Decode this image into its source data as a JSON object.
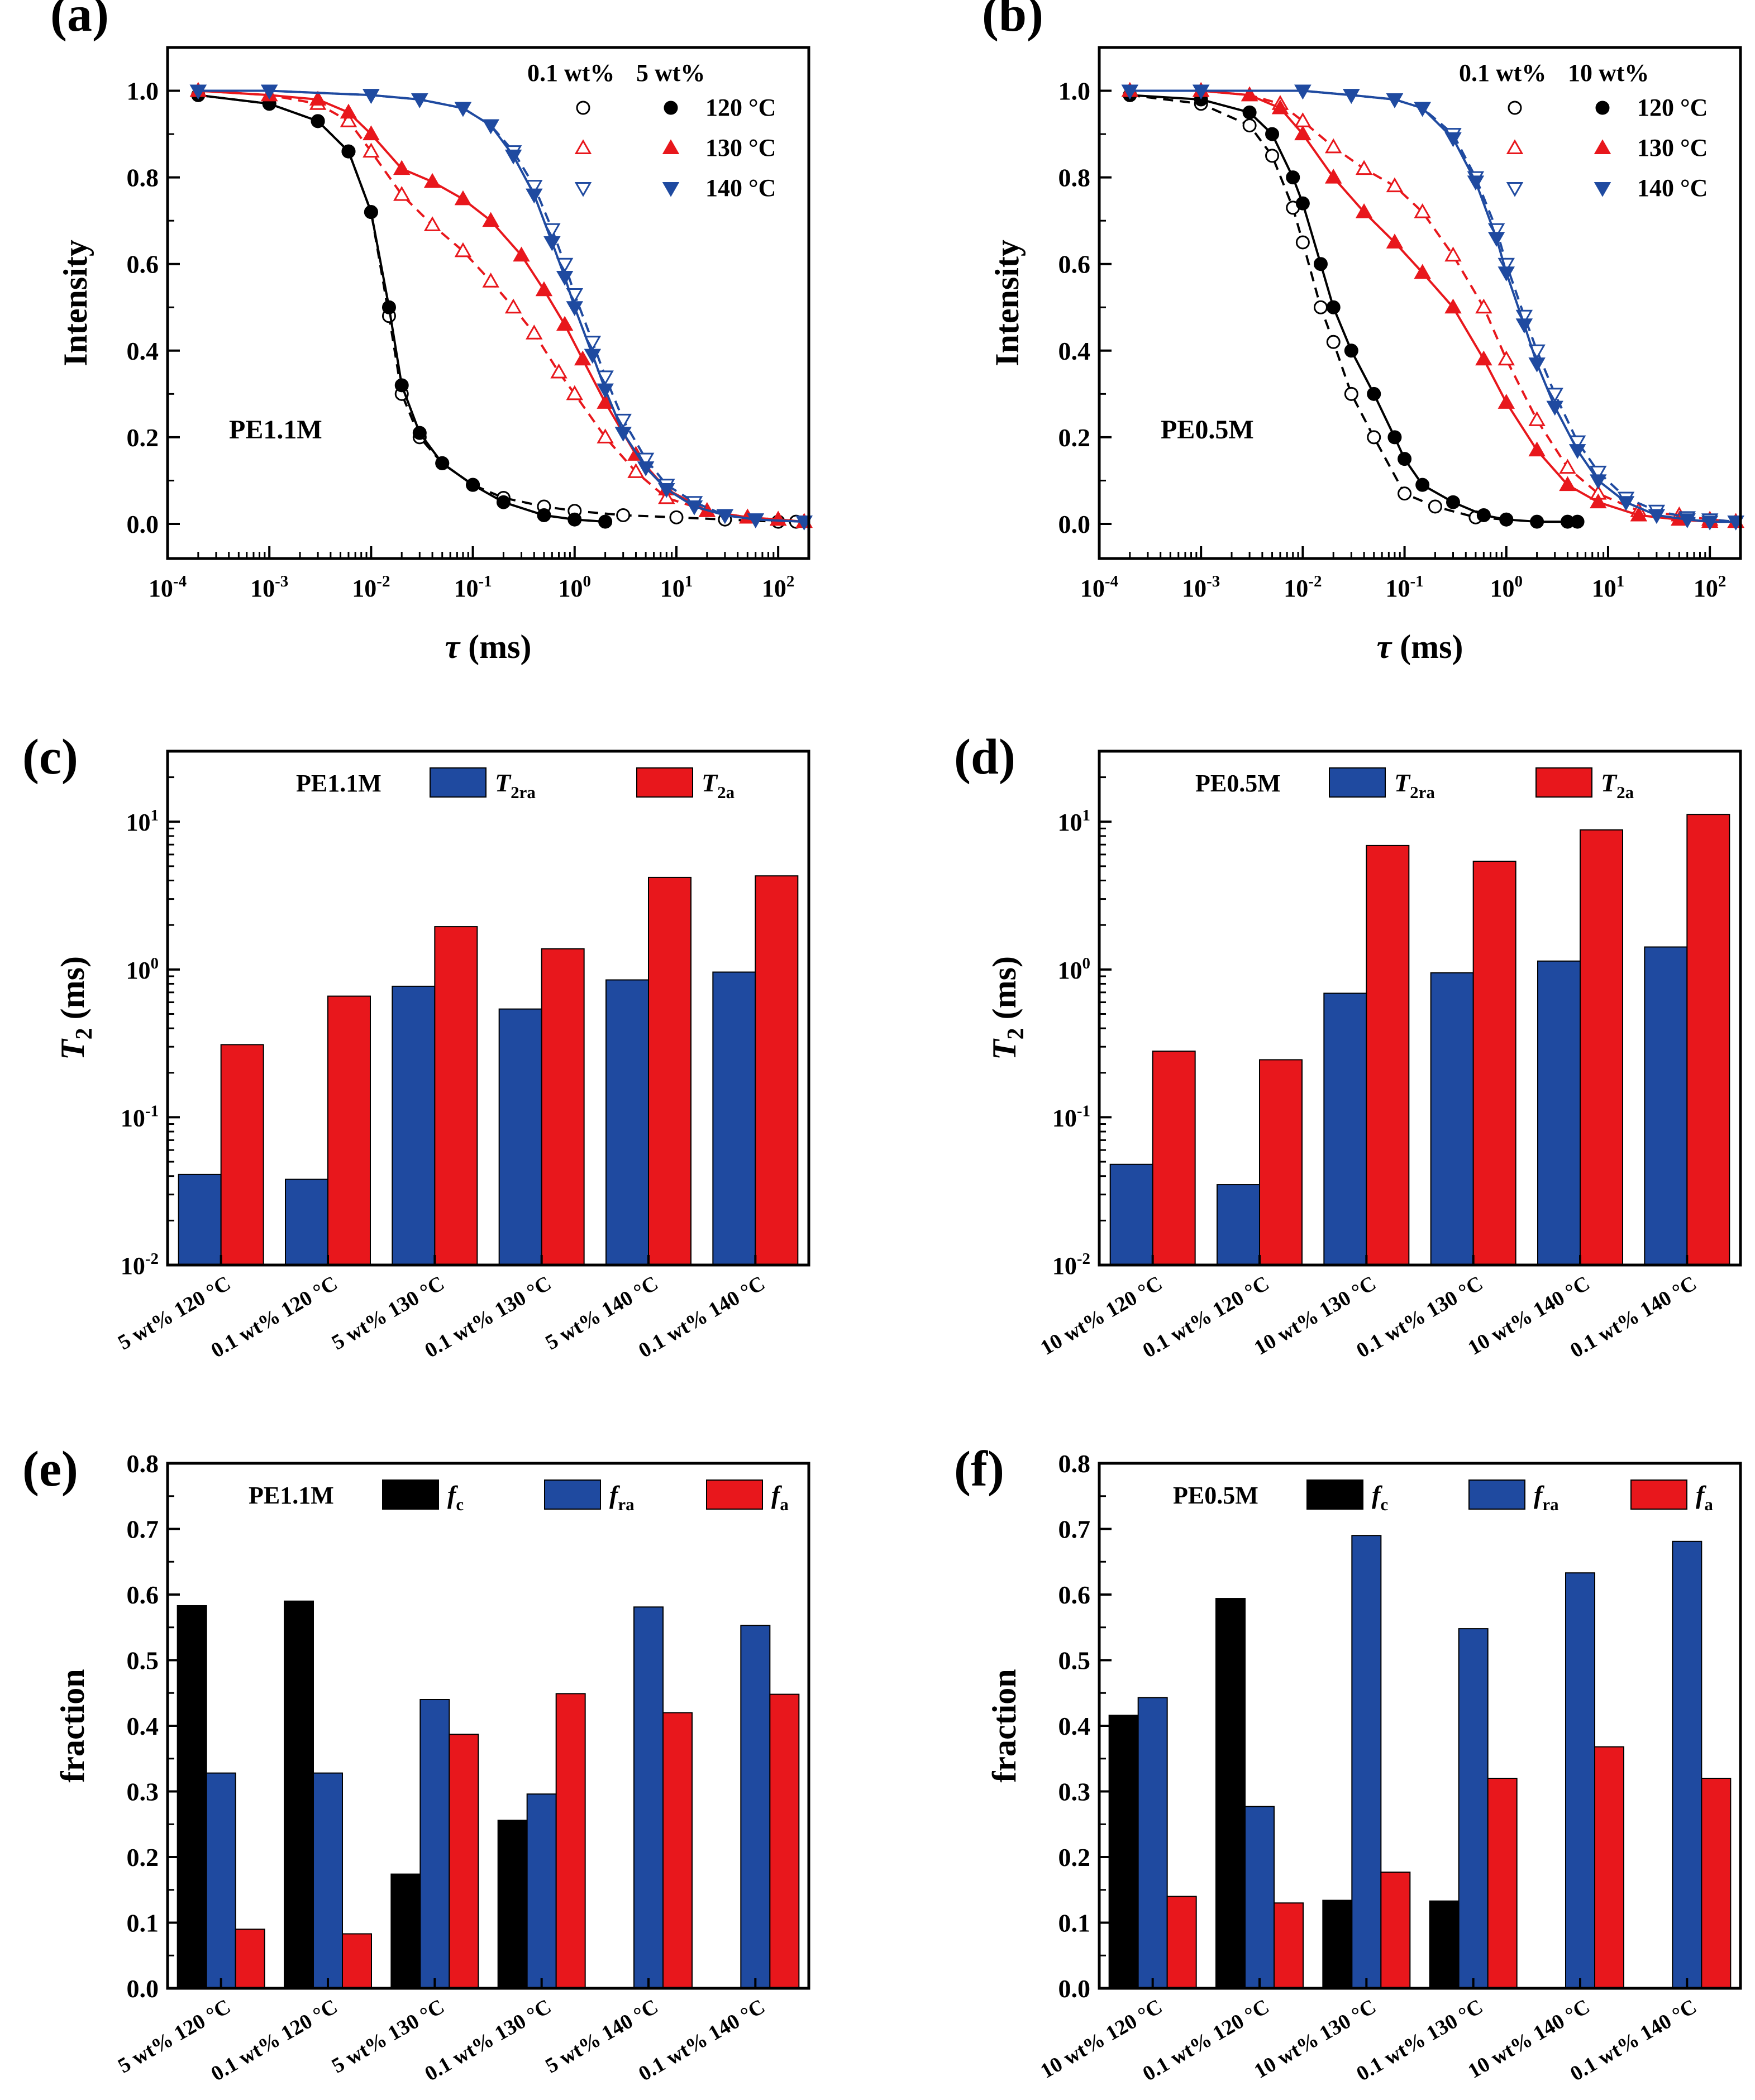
{
  "colors": {
    "black": "#000000",
    "red": "#e8171c",
    "blue": "#1f4aa0"
  },
  "chart_data": [
    {
      "type": "scatter",
      "panel": "(a)",
      "sample": "PE1.1M",
      "xlabel_sym": "τ",
      "xlabel_unit": " (ms)",
      "ylabel": "Intensity",
      "xscale": "log",
      "xlim": [
        0.0001,
        200
      ],
      "ylim": [
        -0.08,
        1.1
      ],
      "xticks": [
        {
          "v": 0.0001,
          "b": "10",
          "e": "-4"
        },
        {
          "v": 0.001,
          "b": "10",
          "e": "-3"
        },
        {
          "v": 0.01,
          "b": "10",
          "e": "-2"
        },
        {
          "v": 0.1,
          "b": "10",
          "e": "-1"
        },
        {
          "v": 1,
          "b": "10",
          "e": "0"
        },
        {
          "v": 10,
          "b": "10",
          "e": "1"
        },
        {
          "v": 100,
          "b": "10",
          "e": "2"
        }
      ],
      "yticks": [
        {
          "v": 0.0,
          "t": "0.0"
        },
        {
          "v": 0.2,
          "t": "0.2"
        },
        {
          "v": 0.4,
          "t": "0.4"
        },
        {
          "v": 0.6,
          "t": "0.6"
        },
        {
          "v": 0.8,
          "t": "0.8"
        },
        {
          "v": 1.0,
          "t": "1.0"
        }
      ],
      "legend": {
        "header_open": "0.1 wt%",
        "header_filled": "5 wt%",
        "rows": [
          "120 °C",
          "130 °C",
          "140 °C"
        ]
      },
      "series": [
        {
          "name": "0.1 wt% 120 °C",
          "color": "#000000",
          "marker": "circle-open",
          "x": [
            0.0002,
            0.001,
            0.003,
            0.006,
            0.01,
            0.015,
            0.02,
            0.03,
            0.05,
            0.1,
            0.2,
            0.5,
            1,
            3,
            10,
            30,
            100,
            150
          ],
          "y": [
            0.99,
            0.97,
            0.93,
            0.86,
            0.72,
            0.48,
            0.3,
            0.2,
            0.14,
            0.09,
            0.06,
            0.04,
            0.03,
            0.02,
            0.015,
            0.01,
            0.005,
            0.005
          ]
        },
        {
          "name": "5 wt% 120 °C",
          "color": "#000000",
          "marker": "circle-filled",
          "x": [
            0.0002,
            0.001,
            0.003,
            0.006,
            0.01,
            0.015,
            0.02,
            0.03,
            0.05,
            0.1,
            0.2,
            0.5,
            1,
            2
          ],
          "y": [
            0.99,
            0.97,
            0.93,
            0.86,
            0.72,
            0.5,
            0.32,
            0.21,
            0.14,
            0.09,
            0.05,
            0.02,
            0.01,
            0.005
          ]
        },
        {
          "name": "0.1 wt% 130 °C",
          "color": "#e8171c",
          "marker": "triangle-up-open",
          "x": [
            0.0002,
            0.001,
            0.003,
            0.006,
            0.01,
            0.02,
            0.04,
            0.08,
            0.15,
            0.25,
            0.4,
            0.7,
            1,
            2,
            4,
            8,
            20,
            50,
            100,
            180
          ],
          "y": [
            1.0,
            0.99,
            0.97,
            0.93,
            0.86,
            0.76,
            0.69,
            0.63,
            0.56,
            0.5,
            0.44,
            0.35,
            0.3,
            0.2,
            0.12,
            0.06,
            0.03,
            0.015,
            0.01,
            0.005
          ]
        },
        {
          "name": "5 wt% 130 °C",
          "color": "#e8171c",
          "marker": "triangle-up-filled",
          "x": [
            0.0002,
            0.001,
            0.003,
            0.006,
            0.01,
            0.02,
            0.04,
            0.08,
            0.15,
            0.3,
            0.5,
            0.8,
            1.2,
            2,
            4,
            8,
            20,
            50,
            100,
            180
          ],
          "y": [
            1.0,
            0.99,
            0.98,
            0.95,
            0.9,
            0.82,
            0.79,
            0.75,
            0.7,
            0.62,
            0.54,
            0.46,
            0.38,
            0.28,
            0.16,
            0.08,
            0.03,
            0.015,
            0.01,
            0.005
          ]
        },
        {
          "name": "0.1 wt% 140 °C",
          "color": "#1f4aa0",
          "marker": "triangle-down-open",
          "x": [
            0.0002,
            0.001,
            0.01,
            0.03,
            0.08,
            0.15,
            0.25,
            0.4,
            0.6,
            0.8,
            1,
            1.5,
            2,
            3,
            5,
            8,
            15,
            30,
            60,
            180
          ],
          "y": [
            1.0,
            1.0,
            0.99,
            0.98,
            0.96,
            0.92,
            0.86,
            0.78,
            0.68,
            0.6,
            0.53,
            0.42,
            0.34,
            0.24,
            0.15,
            0.09,
            0.05,
            0.02,
            0.01,
            0.005
          ]
        },
        {
          "name": "5 wt% 140 °C",
          "color": "#1f4aa0",
          "marker": "triangle-down-filled",
          "x": [
            0.0002,
            0.001,
            0.01,
            0.03,
            0.08,
            0.15,
            0.25,
            0.4,
            0.6,
            0.8,
            1,
            1.5,
            2,
            3,
            5,
            8,
            15,
            30,
            60,
            180
          ],
          "y": [
            1.0,
            1.0,
            0.99,
            0.98,
            0.96,
            0.92,
            0.85,
            0.76,
            0.65,
            0.57,
            0.5,
            0.39,
            0.31,
            0.21,
            0.13,
            0.08,
            0.04,
            0.02,
            0.01,
            0.005
          ]
        }
      ]
    },
    {
      "type": "scatter",
      "panel": "(b)",
      "sample": "PE0.5M",
      "xlabel_sym": "τ",
      "xlabel_unit": " (ms)",
      "ylabel": "Intensity",
      "xscale": "log",
      "xlim": [
        0.0001,
        200
      ],
      "ylim": [
        -0.08,
        1.1
      ],
      "xticks": [
        {
          "v": 0.0001,
          "b": "10",
          "e": "-4"
        },
        {
          "v": 0.001,
          "b": "10",
          "e": "-3"
        },
        {
          "v": 0.01,
          "b": "10",
          "e": "-2"
        },
        {
          "v": 0.1,
          "b": "10",
          "e": "-1"
        },
        {
          "v": 1,
          "b": "10",
          "e": "0"
        },
        {
          "v": 10,
          "b": "10",
          "e": "1"
        },
        {
          "v": 100,
          "b": "10",
          "e": "2"
        }
      ],
      "yticks": [
        {
          "v": 0.0,
          "t": "0.0"
        },
        {
          "v": 0.2,
          "t": "0.2"
        },
        {
          "v": 0.4,
          "t": "0.4"
        },
        {
          "v": 0.6,
          "t": "0.6"
        },
        {
          "v": 0.8,
          "t": "0.8"
        },
        {
          "v": 1.0,
          "t": "1.0"
        }
      ],
      "legend": {
        "header_open": "0.1 wt%",
        "header_filled": "10 wt%",
        "rows": [
          "120 °C",
          "130 °C",
          "140 °C"
        ]
      },
      "series": [
        {
          "name": "0.1 wt% 120 °C",
          "color": "#000000",
          "marker": "circle-open",
          "x": [
            0.0002,
            0.001,
            0.003,
            0.005,
            0.008,
            0.01,
            0.015,
            0.02,
            0.03,
            0.05,
            0.1,
            0.2,
            0.5,
            1
          ],
          "y": [
            0.99,
            0.97,
            0.92,
            0.85,
            0.73,
            0.65,
            0.5,
            0.42,
            0.3,
            0.2,
            0.07,
            0.04,
            0.015,
            0.01
          ]
        },
        {
          "name": "10 wt% 120 °C",
          "color": "#000000",
          "marker": "circle-filled",
          "x": [
            0.0002,
            0.001,
            0.003,
            0.005,
            0.008,
            0.01,
            0.015,
            0.02,
            0.03,
            0.05,
            0.08,
            0.1,
            0.15,
            0.3,
            0.6,
            1,
            2,
            4,
            5
          ],
          "y": [
            0.99,
            0.98,
            0.95,
            0.9,
            0.8,
            0.74,
            0.6,
            0.5,
            0.4,
            0.3,
            0.2,
            0.15,
            0.09,
            0.05,
            0.02,
            0.01,
            0.005,
            0.005,
            0.005
          ]
        },
        {
          "name": "0.1 wt% 130 °C",
          "color": "#e8171c",
          "marker": "triangle-up-open",
          "x": [
            0.0002,
            0.001,
            0.003,
            0.006,
            0.01,
            0.02,
            0.04,
            0.08,
            0.15,
            0.3,
            0.6,
            1,
            2,
            4,
            8,
            20,
            50,
            100,
            180
          ],
          "y": [
            1.0,
            1.0,
            0.99,
            0.97,
            0.93,
            0.87,
            0.82,
            0.78,
            0.72,
            0.62,
            0.5,
            0.38,
            0.24,
            0.13,
            0.07,
            0.03,
            0.02,
            0.01,
            0.005
          ]
        },
        {
          "name": "10 wt% 130 °C",
          "color": "#e8171c",
          "marker": "triangle-up-filled",
          "x": [
            0.0002,
            0.001,
            0.003,
            0.006,
            0.01,
            0.02,
            0.04,
            0.08,
            0.15,
            0.3,
            0.6,
            1,
            2,
            4,
            8,
            20,
            50,
            100,
            180
          ],
          "y": [
            1.0,
            1.0,
            0.99,
            0.96,
            0.9,
            0.8,
            0.72,
            0.65,
            0.58,
            0.5,
            0.38,
            0.28,
            0.17,
            0.09,
            0.05,
            0.02,
            0.01,
            0.005,
            0.005
          ]
        },
        {
          "name": "0.1 wt% 140 °C",
          "color": "#1f4aa0",
          "marker": "triangle-down-open",
          "x": [
            0.0002,
            0.001,
            0.01,
            0.03,
            0.08,
            0.15,
            0.3,
            0.5,
            0.8,
            1,
            1.5,
            2,
            3,
            5,
            8,
            15,
            30,
            60,
            100,
            180
          ],
          "y": [
            1.0,
            1.0,
            1.0,
            0.99,
            0.98,
            0.96,
            0.9,
            0.8,
            0.68,
            0.6,
            0.48,
            0.4,
            0.3,
            0.19,
            0.12,
            0.06,
            0.03,
            0.015,
            0.01,
            0.005
          ]
        },
        {
          "name": "10 wt% 140 °C",
          "color": "#1f4aa0",
          "marker": "triangle-down-filled",
          "x": [
            0.0002,
            0.001,
            0.01,
            0.03,
            0.08,
            0.15,
            0.3,
            0.5,
            0.8,
            1,
            1.5,
            2,
            3,
            5,
            8,
            15,
            30,
            60,
            100,
            180
          ],
          "y": [
            1.0,
            1.0,
            1.0,
            0.99,
            0.98,
            0.96,
            0.89,
            0.79,
            0.66,
            0.58,
            0.46,
            0.37,
            0.27,
            0.17,
            0.1,
            0.05,
            0.02,
            0.01,
            0.005,
            0.005
          ]
        }
      ]
    },
    {
      "type": "bar",
      "panel": "(c)",
      "sample": "PE1.1M",
      "ylabel_sym": "T",
      "ylabel_sub": "2",
      "ylabel_unit": " (ms)",
      "yscale": "log",
      "ylim": [
        0.01,
        30
      ],
      "yticks": [
        {
          "v": 0.01,
          "b": "10",
          "e": "-2"
        },
        {
          "v": 0.1,
          "b": "10",
          "e": "-1"
        },
        {
          "v": 1,
          "b": "10",
          "e": "0"
        },
        {
          "v": 10,
          "b": "10",
          "e": "1"
        }
      ],
      "categories": [
        "5 wt% 120 °C",
        "0.1 wt% 120 °C",
        "5 wt% 130 °C",
        "0.1 wt% 130 °C",
        "5 wt% 140 °C",
        "0.1 wt% 140 °C"
      ],
      "series": [
        {
          "sym": "T",
          "sub": "2ra",
          "color": "#1f4aa0",
          "values": [
            0.041,
            0.038,
            0.77,
            0.54,
            0.85,
            0.96
          ]
        },
        {
          "sym": "T",
          "sub": "2a",
          "color": "#e8171c",
          "values": [
            0.31,
            0.66,
            1.95,
            1.38,
            4.2,
            4.3
          ]
        }
      ]
    },
    {
      "type": "bar",
      "panel": "(d)",
      "sample": "PE0.5M",
      "ylabel_sym": "T",
      "ylabel_sub": "2",
      "ylabel_unit": " (ms)",
      "yscale": "log",
      "ylim": [
        0.01,
        30
      ],
      "yticks": [
        {
          "v": 0.01,
          "b": "10",
          "e": "-2"
        },
        {
          "v": 0.1,
          "b": "10",
          "e": "-1"
        },
        {
          "v": 1,
          "b": "10",
          "e": "0"
        },
        {
          "v": 10,
          "b": "10",
          "e": "1"
        }
      ],
      "categories": [
        "10 wt% 120 °C",
        "0.1 wt% 120 °C",
        "10 wt% 130 °C",
        "0.1 wt% 130 °C",
        "10 wt% 140 °C",
        "0.1 wt% 140 °C"
      ],
      "series": [
        {
          "sym": "T",
          "sub": "2ra",
          "color": "#1f4aa0",
          "values": [
            0.048,
            0.035,
            0.69,
            0.95,
            1.14,
            1.42
          ]
        },
        {
          "sym": "T",
          "sub": "2a",
          "color": "#e8171c",
          "values": [
            0.28,
            0.245,
            6.9,
            5.4,
            8.8,
            11.2
          ]
        }
      ]
    },
    {
      "type": "bar",
      "panel": "(e)",
      "sample": "PE1.1M",
      "ylabel": "fraction",
      "ylim": [
        0,
        0.8
      ],
      "yticks": [
        {
          "v": 0.0,
          "t": "0.0"
        },
        {
          "v": 0.1,
          "t": "0.1"
        },
        {
          "v": 0.2,
          "t": "0.2"
        },
        {
          "v": 0.3,
          "t": "0.3"
        },
        {
          "v": 0.4,
          "t": "0.4"
        },
        {
          "v": 0.5,
          "t": "0.5"
        },
        {
          "v": 0.6,
          "t": "0.6"
        },
        {
          "v": 0.7,
          "t": "0.7"
        },
        {
          "v": 0.8,
          "t": "0.8"
        }
      ],
      "categories": [
        "5 wt% 120 °C",
        "0.1 wt% 120 °C",
        "5 wt% 130 °C",
        "0.1 wt% 130 °C",
        "5 wt% 140 °C",
        "0.1 wt% 140 °C"
      ],
      "series": [
        {
          "sym": "f",
          "sub": "c",
          "color": "#000000",
          "values": [
            0.583,
            0.59,
            0.174,
            0.256,
            0,
            0
          ]
        },
        {
          "sym": "f",
          "sub": "ra",
          "color": "#1f4aa0",
          "values": [
            0.328,
            0.328,
            0.44,
            0.296,
            0.581,
            0.553
          ]
        },
        {
          "sym": "f",
          "sub": "a",
          "color": "#e8171c",
          "values": [
            0.09,
            0.083,
            0.387,
            0.449,
            0.42,
            0.448
          ]
        }
      ]
    },
    {
      "type": "bar",
      "panel": "(f)",
      "sample": "PE0.5M",
      "ylabel": "fraction",
      "ylim": [
        0,
        0.8
      ],
      "yticks": [
        {
          "v": 0.0,
          "t": "0.0"
        },
        {
          "v": 0.1,
          "t": "0.1"
        },
        {
          "v": 0.2,
          "t": "0.2"
        },
        {
          "v": 0.3,
          "t": "0.3"
        },
        {
          "v": 0.4,
          "t": "0.4"
        },
        {
          "v": 0.5,
          "t": "0.5"
        },
        {
          "v": 0.6,
          "t": "0.6"
        },
        {
          "v": 0.7,
          "t": "0.7"
        },
        {
          "v": 0.8,
          "t": "0.8"
        }
      ],
      "categories": [
        "10 wt% 120 °C",
        "0.1 wt% 120 °C",
        "10 wt% 130 °C",
        "0.1 wt% 130 °C",
        "10 wt% 140 °C",
        "0.1 wt% 140 °C"
      ],
      "series": [
        {
          "sym": "f",
          "sub": "c",
          "color": "#000000",
          "values": [
            0.416,
            0.594,
            0.134,
            0.133,
            0,
            0
          ]
        },
        {
          "sym": "f",
          "sub": "ra",
          "color": "#1f4aa0",
          "values": [
            0.443,
            0.277,
            0.69,
            0.548,
            0.633,
            0.681
          ]
        },
        {
          "sym": "f",
          "sub": "a",
          "color": "#e8171c",
          "values": [
            0.14,
            0.13,
            0.177,
            0.32,
            0.368,
            0.32
          ]
        }
      ]
    }
  ]
}
